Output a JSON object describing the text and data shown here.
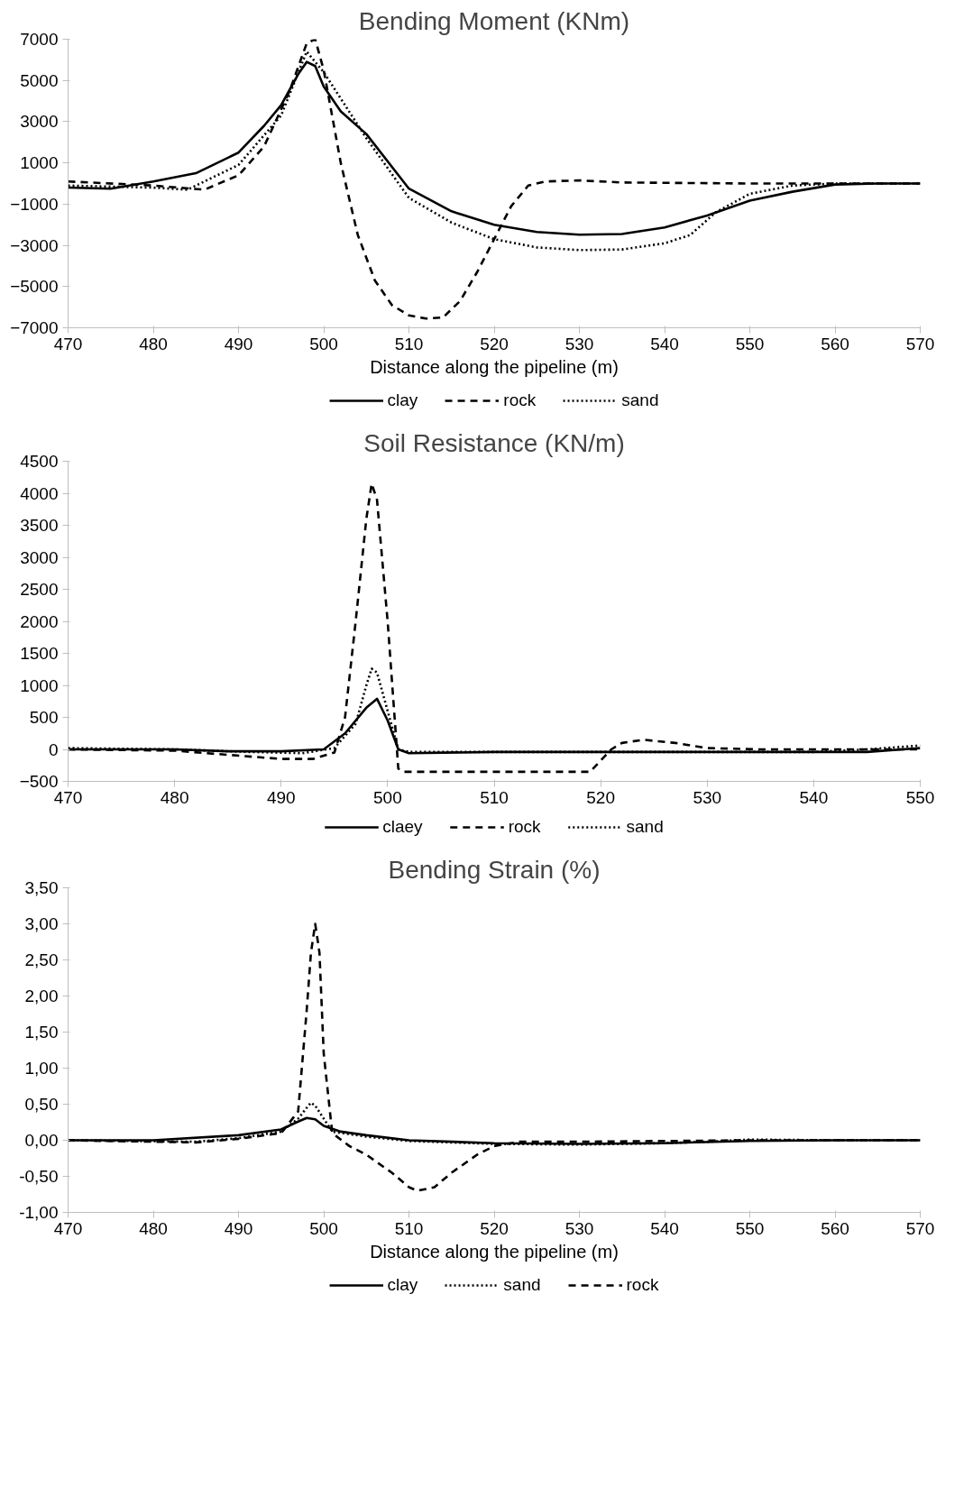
{
  "chart_data": [
    {
      "type": "line",
      "title": "Bending Moment (KNm)",
      "xlabel": "Distance along the pipeline (m)",
      "xlim": [
        470,
        570
      ],
      "xticks": [
        470,
        480,
        490,
        500,
        510,
        520,
        530,
        540,
        550,
        560,
        570
      ],
      "ylim": [
        -7000,
        7000
      ],
      "yticks": [
        -7000,
        -5000,
        -3000,
        -1000,
        1000,
        3000,
        5000,
        7000
      ],
      "grid": false,
      "legend": "bottom",
      "series": [
        {
          "name": "clay",
          "color": "#000000",
          "line_style": "solid",
          "x": [
            470,
            475,
            480,
            485,
            490,
            493,
            495,
            497,
            498,
            499,
            500,
            502,
            505,
            510,
            515,
            520,
            525,
            530,
            535,
            540,
            545,
            550,
            555,
            560,
            565,
            570
          ],
          "values": [
            -200,
            -250,
            100,
            500,
            1500,
            2800,
            3800,
            5300,
            5900,
            5700,
            4700,
            3500,
            2400,
            -250,
            -1350,
            -2000,
            -2350,
            -2480,
            -2450,
            -2130,
            -1550,
            -830,
            -400,
            -50,
            0,
            0
          ]
        },
        {
          "name": "rock",
          "color": "#000000",
          "line_style": "dashed",
          "x": [
            470,
            480,
            486,
            490,
            493,
            496,
            498,
            499,
            500,
            502,
            504,
            506,
            508,
            510,
            512,
            514,
            516,
            518,
            520,
            522,
            524,
            526,
            530,
            535,
            550,
            570
          ],
          "values": [
            100,
            -100,
            -300,
            400,
            1800,
            4500,
            6800,
            7000,
            5500,
            1000,
            -2500,
            -4700,
            -5900,
            -6400,
            -6550,
            -6500,
            -5700,
            -4300,
            -2700,
            -1100,
            -100,
            100,
            150,
            50,
            0,
            0
          ]
        },
        {
          "name": "sand",
          "color": "#000000",
          "line_style": "dotted",
          "x": [
            470,
            480,
            484,
            490,
            495,
            498,
            500,
            505,
            510,
            515,
            520,
            525,
            530,
            535,
            540,
            543,
            546,
            550,
            555,
            560,
            570
          ],
          "values": [
            -100,
            -200,
            -300,
            900,
            3300,
            6400,
            5400,
            2200,
            -700,
            -1900,
            -2700,
            -3100,
            -3230,
            -3200,
            -2900,
            -2500,
            -1400,
            -500,
            -100,
            0,
            0
          ]
        }
      ]
    },
    {
      "type": "line",
      "title": "Soil Resistance (KN/m)",
      "xlim": [
        470,
        550
      ],
      "xticks": [
        470,
        480,
        490,
        500,
        510,
        520,
        530,
        540,
        550
      ],
      "ylim": [
        -500,
        4500
      ],
      "yticks": [
        -500,
        0,
        500,
        1000,
        1500,
        2000,
        2500,
        3000,
        3500,
        4000,
        4500
      ],
      "grid": false,
      "legend": "bottom",
      "series": [
        {
          "name": "claey",
          "color": "#000000",
          "line_style": "solid",
          "x": [
            470,
            480,
            485,
            490,
            494,
            496,
            498,
            499,
            500,
            501,
            502,
            510,
            520,
            530,
            540,
            545,
            550
          ],
          "values": [
            0,
            0,
            -30,
            -30,
            0,
            250,
            650,
            790,
            450,
            0,
            -60,
            -40,
            -40,
            -40,
            -40,
            -40,
            20
          ]
        },
        {
          "name": "rock",
          "color": "#000000",
          "line_style": "dashed",
          "x": [
            470,
            480,
            490,
            493,
            495,
            496,
            497,
            498,
            498.5,
            499,
            500,
            501,
            501.5,
            510,
            519,
            521,
            522,
            524,
            527,
            530,
            535,
            550
          ],
          "values": [
            0,
            -20,
            -150,
            -150,
            -50,
            500,
            2000,
            3600,
            4150,
            3900,
            2000,
            -300,
            -350,
            -350,
            -350,
            0,
            100,
            150,
            100,
            20,
            0,
            0
          ]
        },
        {
          "name": "sand",
          "color": "#000000",
          "line_style": "dotted",
          "x": [
            470,
            480,
            487,
            492,
            495,
            497,
            498,
            498.5,
            499,
            500,
            501,
            502,
            520,
            540,
            545,
            550
          ],
          "values": [
            20,
            0,
            -40,
            -60,
            20,
            400,
            1000,
            1260,
            1200,
            600,
            0,
            -40,
            -40,
            -40,
            0,
            60
          ]
        }
      ]
    },
    {
      "type": "line",
      "title": "Bending Strain (%)",
      "xlabel": "Distance along the pipeline (m)",
      "xlim": [
        470,
        570
      ],
      "xticks": [
        470,
        480,
        490,
        500,
        510,
        520,
        530,
        540,
        550,
        560,
        570
      ],
      "ylim": [
        -1,
        3.5
      ],
      "yticks": [
        {
          "value": -1,
          "label": "-1,00"
        },
        {
          "value": -0.5,
          "label": "-0,50"
        },
        {
          "value": 0,
          "label": "0,00"
        },
        {
          "value": 0.5,
          "label": "0,50"
        },
        {
          "value": 1,
          "label": "1,00"
        },
        {
          "value": 1.5,
          "label": "1,50"
        },
        {
          "value": 2,
          "label": "2,00"
        },
        {
          "value": 2.5,
          "label": "2,50"
        },
        {
          "value": 3,
          "label": "3,00"
        },
        {
          "value": 3.5,
          "label": "3,50"
        }
      ],
      "grid": false,
      "legend": "bottom",
      "series": [
        {
          "name": "clay",
          "color": "#000000",
          "line_style": "solid",
          "x": [
            470,
            480,
            490,
            495,
            497,
            498,
            499,
            500,
            502,
            505,
            510,
            520,
            530,
            540,
            550,
            560,
            570
          ],
          "values": [
            0,
            0,
            0.07,
            0.15,
            0.26,
            0.31,
            0.29,
            0.2,
            0.12,
            0.07,
            0,
            -0.04,
            -0.05,
            -0.04,
            -0.01,
            0,
            0
          ]
        },
        {
          "name": "sand",
          "color": "#000000",
          "line_style": "dotted",
          "x": [
            470,
            485,
            490,
            495,
            497,
            498,
            498.5,
            499,
            500,
            501,
            505,
            510,
            520,
            530,
            540,
            545,
            550,
            560,
            570
          ],
          "values": [
            0,
            -0.02,
            0.03,
            0.12,
            0.3,
            0.45,
            0.52,
            0.48,
            0.3,
            0.12,
            0.05,
            -0.01,
            -0.05,
            -0.06,
            -0.04,
            -0.02,
            0.01,
            0,
            0
          ]
        },
        {
          "name": "rock",
          "color": "#000000",
          "line_style": "dashed",
          "x": [
            470,
            485,
            490,
            495,
            497,
            498,
            498.5,
            499,
            499.5,
            500,
            501,
            503,
            505,
            508,
            510,
            511,
            513,
            515,
            518,
            520,
            523,
            530,
            540,
            550,
            570
          ],
          "values": [
            0,
            -0.03,
            0.02,
            0.1,
            0.4,
            1.8,
            2.6,
            3.0,
            2.6,
            1.2,
            0.1,
            -0.08,
            -0.2,
            -0.45,
            -0.65,
            -0.7,
            -0.65,
            -0.45,
            -0.2,
            -0.08,
            -0.02,
            -0.02,
            -0.01,
            0,
            0
          ]
        }
      ]
    }
  ]
}
